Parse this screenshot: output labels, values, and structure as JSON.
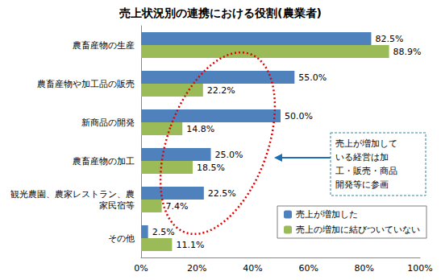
{
  "chart_data": {
    "type": "bar",
    "orientation": "horizontal",
    "title": "売上状況別の連携における役割(農業者)",
    "categories": [
      "農畜産物の生産",
      "農畜産物や加工品の販売",
      "新商品の開発",
      "農畜産物の加工",
      "観光農園、農家レストラン、農家民宿等",
      "その他"
    ],
    "series": [
      {
        "name": "売上が増加した",
        "color": "#4f81bd",
        "values": [
          82.5,
          55.0,
          50.0,
          25.0,
          22.5,
          2.5
        ],
        "value_labels": [
          "82.5%",
          "55.0%",
          "50.0%",
          "25.0%",
          "22.5%",
          "2.5%"
        ]
      },
      {
        "name": "売上の増加に結びついていない",
        "color": "#9bbb59",
        "values": [
          88.9,
          22.2,
          14.8,
          18.5,
          7.4,
          11.1
        ],
        "value_labels": [
          "88.9%",
          "22.2%",
          "14.8%",
          "18.5%",
          "7.4%",
          "11.1%"
        ]
      }
    ],
    "xlim": [
      0,
      100
    ],
    "xticks": [
      {
        "value": 0,
        "label": "0%"
      },
      {
        "value": 20,
        "label": "20%"
      },
      {
        "value": 40,
        "label": "40%"
      },
      {
        "value": 60,
        "label": "60%"
      },
      {
        "value": 80,
        "label": "80%"
      },
      {
        "value": 100,
        "label": "100%"
      }
    ],
    "data_labels": true,
    "grid": false,
    "legend": "lower right",
    "annotation": [
      "売上が増加して",
      "いる経営は加",
      "工・販売・商品",
      "開発等に参画"
    ]
  }
}
